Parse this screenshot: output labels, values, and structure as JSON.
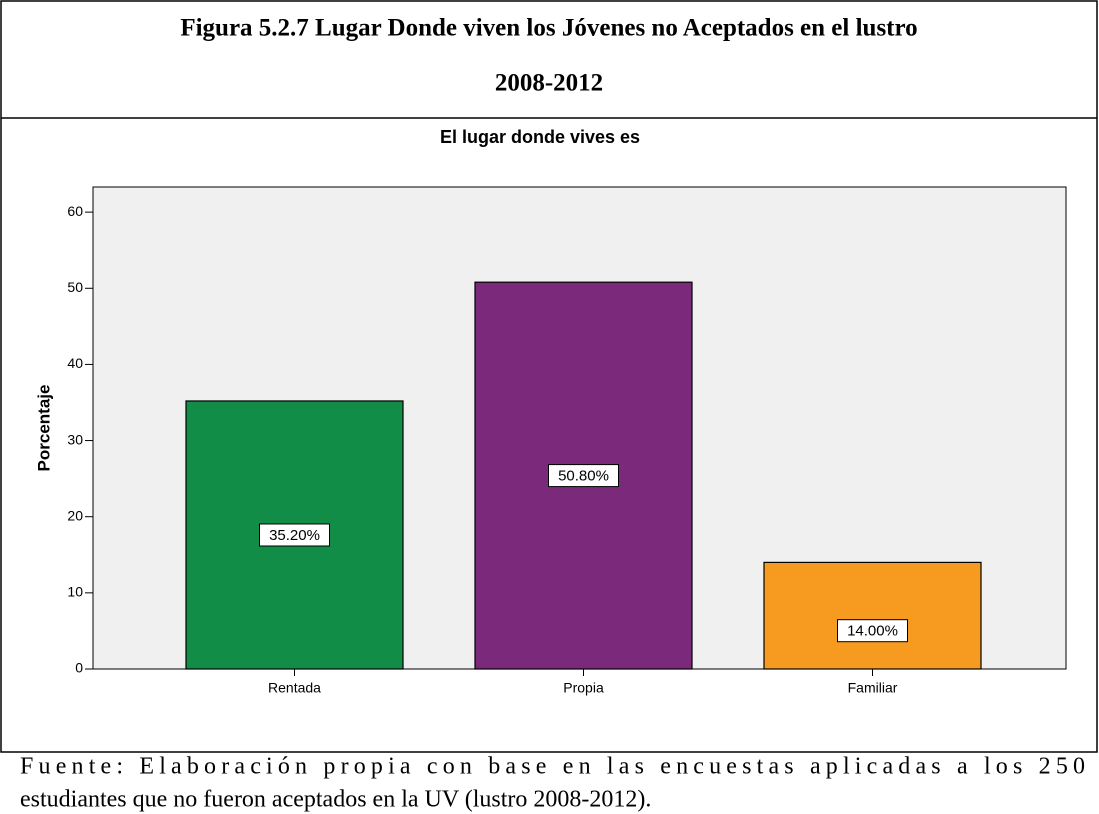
{
  "chart_data": {
    "type": "bar",
    "header": [
      "Figura 5.2.7 Lugar Donde viven los Jóvenes no Aceptados en el lustro",
      "2008-2012"
    ],
    "title": "El lugar donde vives es",
    "y_label": "Porcentaje",
    "categories": [
      "Rentada",
      "Propia",
      "Familiar"
    ],
    "values": [
      35.2,
      50.8,
      14.0
    ],
    "value_labels": [
      "35.20%",
      "50.80%",
      "14.00%"
    ],
    "colors": [
      "#128d48",
      "#7b2a7b",
      "#f79a20"
    ],
    "ylim": [
      0,
      63.3
    ],
    "yticks": [
      0,
      10,
      20,
      30,
      40,
      50,
      60
    ],
    "footer": [
      "Fuente: Elaboración propia con base en las encuestas aplicadas a los 250",
      "estudiantes que no fueron aceptados en la UV (lustro 2008-2012)."
    ]
  }
}
